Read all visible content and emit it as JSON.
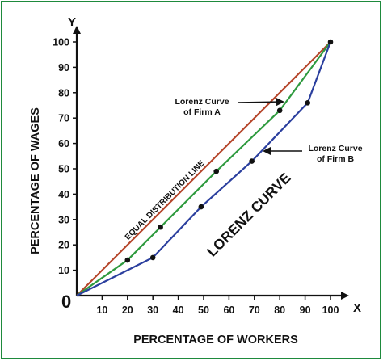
{
  "chart_data": {
    "type": "line",
    "xlabel": "PERCENTAGE OF WORKERS",
    "ylabel": "PERCENTAGE OF WAGES",
    "x_axis_letter": "X",
    "y_axis_letter": "Y",
    "origin_label": "0",
    "xlim": [
      0,
      100
    ],
    "ylim": [
      0,
      100
    ],
    "x_ticks": [
      10,
      20,
      30,
      40,
      50,
      60,
      70,
      80,
      90,
      100
    ],
    "y_ticks": [
      10,
      20,
      30,
      40,
      50,
      60,
      70,
      80,
      90,
      100
    ],
    "grid": false,
    "series": [
      {
        "name": "EQUAL DISTRIBUTION LINE",
        "color": "#b5452a",
        "markers": false,
        "points": [
          [
            0,
            0
          ],
          [
            100,
            100
          ]
        ]
      },
      {
        "name": "Lorenz Curve of Firm A",
        "color": "#2e9a3e",
        "markers": true,
        "marker_points": [
          [
            20,
            14
          ],
          [
            33,
            27
          ],
          [
            55,
            49
          ],
          [
            80,
            73
          ]
        ],
        "points": [
          [
            0,
            0
          ],
          [
            20,
            14
          ],
          [
            33,
            27
          ],
          [
            55,
            49
          ],
          [
            80,
            73
          ],
          [
            100,
            100
          ]
        ]
      },
      {
        "name": "Lorenz Curve of Firm B",
        "color": "#2b3f9e",
        "markers": true,
        "marker_points": [
          [
            30,
            15
          ],
          [
            49,
            35
          ],
          [
            69,
            53
          ],
          [
            91,
            76
          ]
        ],
        "points": [
          [
            0,
            0
          ],
          [
            30,
            15
          ],
          [
            49,
            35
          ],
          [
            69,
            53
          ],
          [
            91,
            76
          ],
          [
            100,
            100
          ]
        ]
      }
    ],
    "end_marker": [
      100,
      100
    ],
    "annotations": {
      "firm_a": [
        "Lorenz Curve",
        "of Firm A"
      ],
      "firm_b": [
        "Lorenz Curve",
        "of Firm B"
      ],
      "equal_line": "EQUAL DISTRIBUTION LINE",
      "lorenz": "LORENZ CURVE"
    }
  }
}
